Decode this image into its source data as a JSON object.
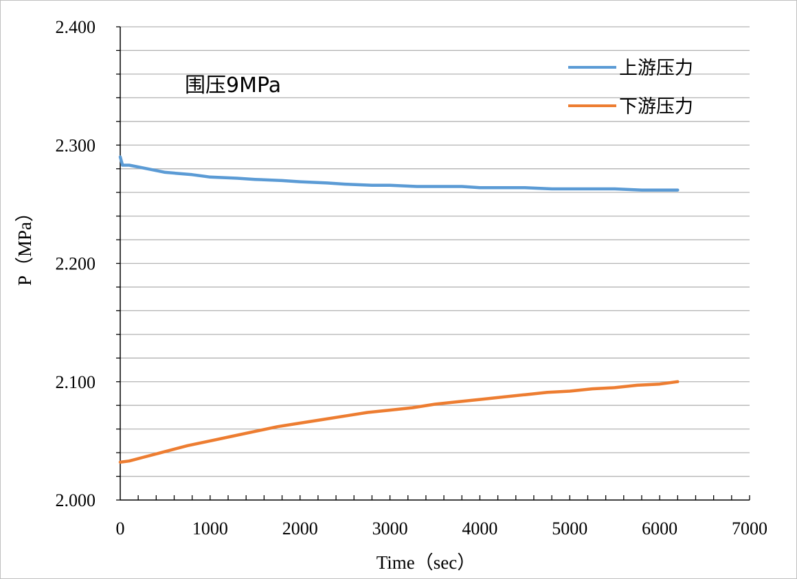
{
  "chart_data": {
    "type": "line",
    "annotation": "围压9MPa",
    "xlabel": "Time（sec）",
    "ylabel": "P（MPa）",
    "xlim": [
      0,
      7000
    ],
    "ylim": [
      2.0,
      2.4
    ],
    "x_ticks": [
      "0",
      "1000",
      "2000",
      "3000",
      "4000",
      "5000",
      "6000",
      "7000"
    ],
    "y_ticks": [
      "2.000",
      "2.100",
      "2.200",
      "2.300",
      "2.400"
    ],
    "grid": true,
    "legend_position": "top-right",
    "series": [
      {
        "name": "上游压力",
        "color": "#5B9BD5",
        "x": [
          0,
          25,
          100,
          300,
          500,
          800,
          1000,
          1300,
          1500,
          1800,
          2000,
          2300,
          2500,
          2800,
          3000,
          3300,
          3500,
          3800,
          4000,
          4300,
          4500,
          4800,
          5000,
          5300,
          5500,
          5800,
          6000,
          6200
        ],
        "y": [
          2.29,
          2.283,
          2.283,
          2.28,
          2.277,
          2.275,
          2.273,
          2.272,
          2.271,
          2.27,
          2.269,
          2.268,
          2.267,
          2.266,
          2.266,
          2.265,
          2.265,
          2.265,
          2.264,
          2.264,
          2.264,
          2.263,
          2.263,
          2.263,
          2.263,
          2.262,
          2.262,
          2.262
        ]
      },
      {
        "name": "下游压力",
        "color": "#ED7D31",
        "x": [
          0,
          100,
          250,
          500,
          750,
          1000,
          1250,
          1500,
          1750,
          2000,
          2250,
          2500,
          2750,
          3000,
          3250,
          3500,
          3750,
          4000,
          4250,
          4500,
          4750,
          5000,
          5250,
          5500,
          5750,
          6000,
          6200
        ],
        "y": [
          2.032,
          2.033,
          2.036,
          2.041,
          2.046,
          2.05,
          2.054,
          2.058,
          2.062,
          2.065,
          2.068,
          2.071,
          2.074,
          2.076,
          2.078,
          2.081,
          2.083,
          2.085,
          2.087,
          2.089,
          2.091,
          2.092,
          2.094,
          2.095,
          2.097,
          2.098,
          2.1
        ]
      }
    ]
  }
}
